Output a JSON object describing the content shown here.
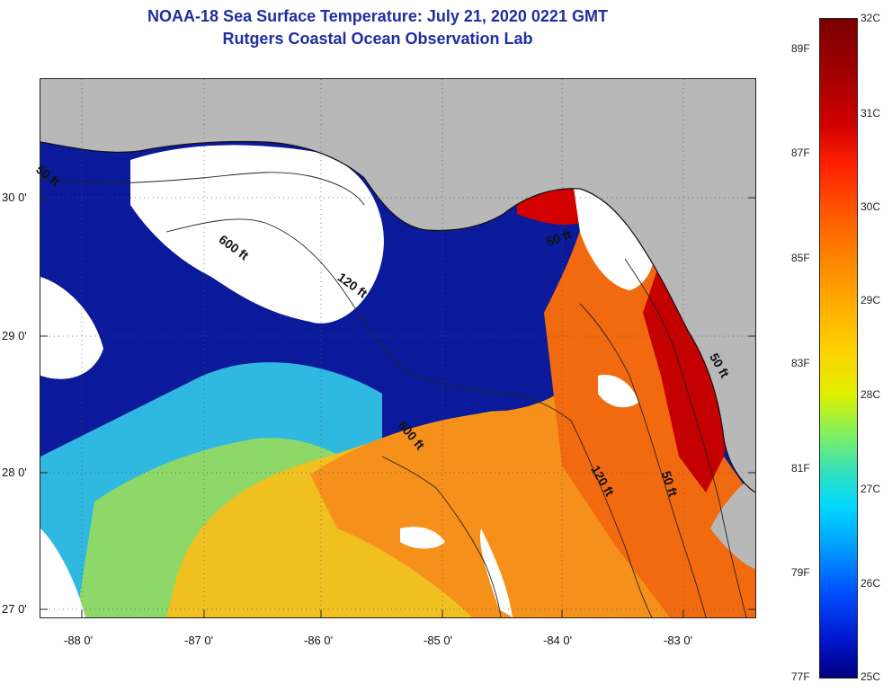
{
  "title": {
    "line1": "NOAA-18 Sea Surface Temperature:  July 21, 2020 0221 GMT",
    "line2": "Rutgers Coastal Ocean Observation Lab"
  },
  "map": {
    "latitude_labels": [
      "30 0'",
      "29 0'",
      "28 0'",
      "27 0'"
    ],
    "longitude_labels": [
      "-88 0'",
      "-87 0'",
      "-86 0'",
      "-85 0'",
      "-84 0'",
      "-83 0'"
    ],
    "contour_labels": [
      "50 ft",
      "600 ft",
      "120 ft",
      "50 ft",
      "600 ft",
      "120 ft",
      "50 ft",
      "50 ft"
    ],
    "colors": {
      "land": "#b8b8b8",
      "cloud": "#ffffff",
      "cold": "#0a1a9a",
      "warm": "#ff7a10",
      "hot": "#c40000"
    }
  },
  "colorbar": {
    "celsius": [
      "32C",
      "31C",
      "30C",
      "29C",
      "28C",
      "27C",
      "26C",
      "25C"
    ],
    "fahrenheit": [
      "89F",
      "87F",
      "85F",
      "83F",
      "81F",
      "79F",
      "77F"
    ]
  }
}
